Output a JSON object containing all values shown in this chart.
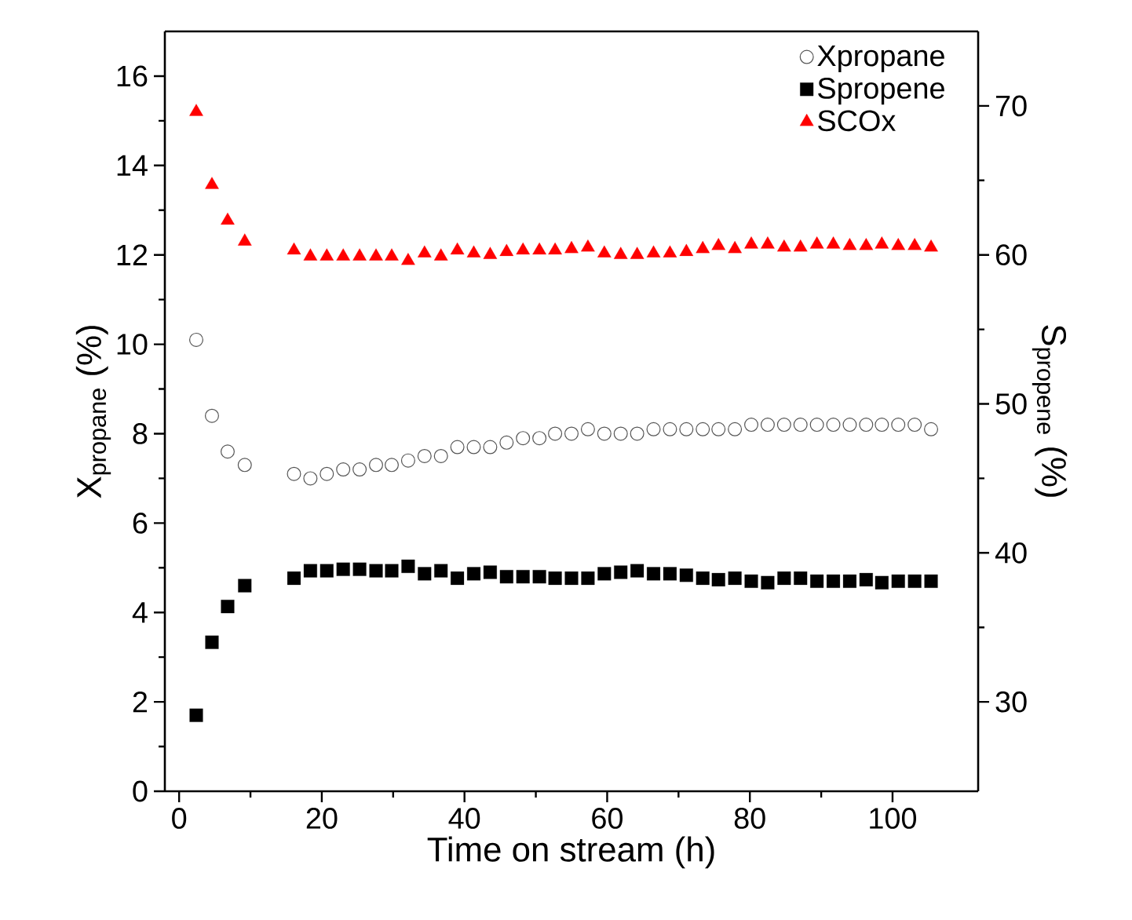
{
  "chart_data": {
    "type": "scatter",
    "xlabel": "Time on stream (h)",
    "ylabel": "X$_{propane}$ (%)",
    "y2label": "S$_{propene}$ (%)",
    "xlim": [
      -2,
      112
    ],
    "xticks": [
      0,
      20,
      40,
      60,
      80,
      100
    ],
    "ylim": [
      0,
      17
    ],
    "yticks": [
      0,
      2,
      4,
      6,
      8,
      10,
      12,
      14,
      16
    ],
    "y2lim": [
      24,
      75
    ],
    "y2ticks": [
      30,
      40,
      50,
      60,
      70
    ],
    "legend": "top right",
    "x": [
      2.4,
      4.6,
      6.8,
      9.2,
      16.1,
      18.4,
      20.7,
      23.0,
      25.3,
      27.6,
      29.8,
      32.1,
      34.4,
      36.7,
      39.0,
      41.3,
      43.6,
      45.9,
      48.2,
      50.5,
      52.7,
      55.0,
      57.3,
      59.6,
      61.9,
      64.2,
      66.5,
      68.8,
      71.1,
      73.4,
      75.6,
      77.9,
      80.2,
      82.5,
      84.8,
      87.1,
      89.4,
      91.7,
      94.0,
      96.3,
      98.5,
      100.8,
      103.1,
      105.4
    ],
    "series": [
      {
        "name": "Xpropane",
        "color": "#555555",
        "marker": "circle",
        "values": [
          10.1,
          8.4,
          7.6,
          7.3,
          7.1,
          7.0,
          7.1,
          7.2,
          7.2,
          7.3,
          7.3,
          7.4,
          7.5,
          7.5,
          7.7,
          7.7,
          7.7,
          7.8,
          7.9,
          7.9,
          8.0,
          8.0,
          8.1,
          8.0,
          8.0,
          8.0,
          8.1,
          8.1,
          8.1,
          8.1,
          8.1,
          8.1,
          8.2,
          8.2,
          8.2,
          8.2,
          8.2,
          8.2,
          8.2,
          8.2,
          8.2,
          8.2,
          8.2,
          8.1
        ]
      },
      {
        "name": "Spropene",
        "color": "#000000",
        "marker": "square",
        "axis": "y2",
        "values": [
          29.1,
          34.0,
          36.4,
          37.8,
          38.3,
          38.8,
          38.8,
          38.9,
          38.9,
          38.8,
          38.8,
          39.1,
          38.6,
          38.8,
          38.3,
          38.6,
          38.7,
          38.4,
          38.4,
          38.4,
          38.3,
          38.3,
          38.3,
          38.6,
          38.7,
          38.8,
          38.6,
          38.6,
          38.5,
          38.3,
          38.2,
          38.3,
          38.1,
          38.0,
          38.3,
          38.3,
          38.1,
          38.1,
          38.1,
          38.2,
          38.0,
          38.1,
          38.1,
          38.1
        ]
      },
      {
        "name": "SCOx",
        "color": "#ff0000",
        "marker": "triangle",
        "axis": "y2",
        "values": [
          69.6,
          64.7,
          62.3,
          60.9,
          60.3,
          59.9,
          59.9,
          59.9,
          59.9,
          59.9,
          59.9,
          59.6,
          60.1,
          59.9,
          60.3,
          60.1,
          60.0,
          60.2,
          60.3,
          60.3,
          60.3,
          60.4,
          60.5,
          60.1,
          60.0,
          60.0,
          60.1,
          60.1,
          60.2,
          60.4,
          60.6,
          60.4,
          60.7,
          60.7,
          60.5,
          60.5,
          60.7,
          60.7,
          60.6,
          60.6,
          60.7,
          60.6,
          60.6,
          60.5
        ]
      }
    ]
  }
}
